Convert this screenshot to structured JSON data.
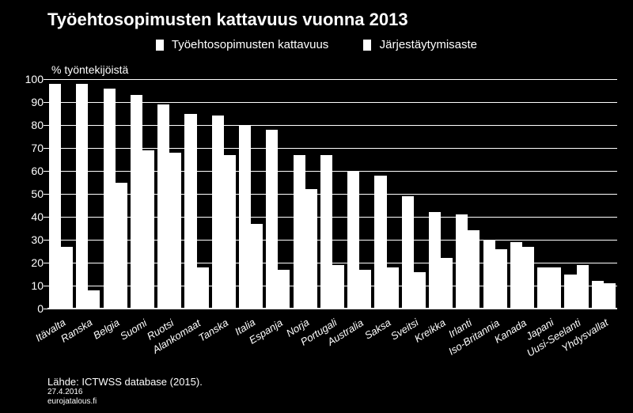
{
  "chart": {
    "type": "bar",
    "title": "Työehtosopimusten kattavuus vuonna 2013",
    "title_fontsize": 22,
    "ylabel": "% työntekijöistä",
    "label_fontsize": 14,
    "ylim": [
      0,
      100
    ],
    "ytick_step": 10,
    "background_color": "#000000",
    "grid_color": "#ffffff",
    "bar_color": "#ffffff",
    "text_color": "#ffffff",
    "xlabel_fontsize": 13,
    "xlabel_fontstyle": "italic",
    "series": [
      {
        "name": "Työehtosopimusten kattavuus",
        "color": "#ffffff"
      },
      {
        "name": "Järjestäytymisaste",
        "color": "#ffffff"
      }
    ],
    "categories": [
      "Itävalta",
      "Ranska",
      "Belgia",
      "Suomi",
      "Ruotsi",
      "Alankomaat",
      "Tanska",
      "Italia",
      "Espanja",
      "Norja",
      "Portugali",
      "Australia",
      "Saksa",
      "Sveitsi",
      "Kreikka",
      "Irlanti",
      "Iso-Britannia",
      "Kanada",
      "Japani",
      "Uusi-Seelanti",
      "Yhdysvallat"
    ],
    "values_coverage": [
      98,
      98,
      96,
      93,
      89,
      85,
      84,
      80,
      78,
      67,
      67,
      60,
      58,
      49,
      42,
      41,
      30,
      29,
      18,
      15,
      12
    ],
    "values_union": [
      27,
      8,
      55,
      69,
      68,
      18,
      67,
      37,
      17,
      52,
      19,
      17,
      18,
      16,
      22,
      34,
      26,
      27,
      18,
      19,
      11
    ],
    "bar_gap_ratio": 0.12
  },
  "footer": {
    "source": "Lähde: ICTWSS database (2015).",
    "date": "27.4.2016",
    "site": "eurojatalous.fi"
  }
}
